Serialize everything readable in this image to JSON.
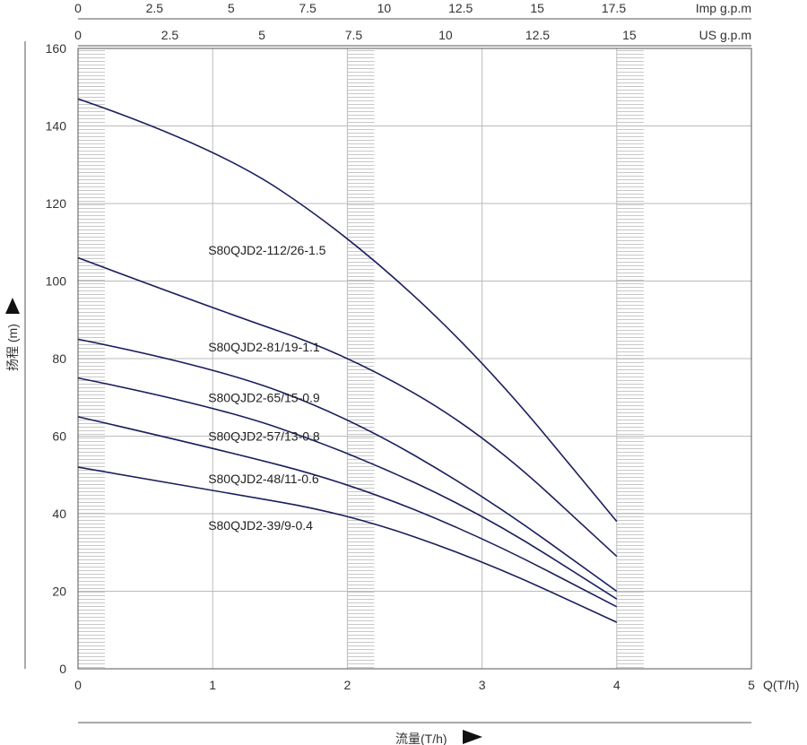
{
  "chart_data": {
    "type": "line",
    "title": "",
    "xlabel": "流量(T/h)",
    "x_axis_end_label": "Q(T/h)",
    "ylabel": "扬程 (m)",
    "xlim": [
      0,
      5
    ],
    "ylim": [
      0,
      160
    ],
    "x_ticks": [
      "0",
      "1",
      "2",
      "3",
      "4",
      "5"
    ],
    "y_ticks": [
      "0",
      "20",
      "40",
      "60",
      "80",
      "100",
      "120",
      "140",
      "160"
    ],
    "grid": true,
    "hatched_bands_x": [
      [
        0,
        0.2
      ],
      [
        2,
        2.2
      ],
      [
        4,
        4.2
      ]
    ],
    "top_axes": [
      {
        "label": "Imp g.p.m",
        "ticks": [
          "0",
          "2.5",
          "5",
          "7.5",
          "10",
          "12.5",
          "15",
          "17.5"
        ],
        "tick_values_q": [
          0,
          0.568,
          1.137,
          1.705,
          2.273,
          2.841,
          3.41,
          3.978
        ]
      },
      {
        "label": "US g.p.m",
        "ticks": [
          "0",
          "2.5",
          "5",
          "7.5",
          "10",
          "12.5",
          "15"
        ],
        "tick_values_q": [
          0,
          0.682,
          1.365,
          2.047,
          2.729,
          3.412,
          4.094
        ]
      }
    ],
    "series": [
      {
        "name": "S80QJD2-112/26-1.5",
        "x": [
          0,
          1,
          2,
          3,
          4
        ],
        "y": [
          147,
          135,
          112,
          80,
          38
        ],
        "label_at": [
          1,
          108
        ]
      },
      {
        "name": "S80QJD2-81/19-1.1",
        "x": [
          0,
          1,
          2,
          3,
          4
        ],
        "y": [
          106,
          93,
          81,
          61,
          29
        ],
        "label_at": [
          1,
          83
        ]
      },
      {
        "name": "S80QJD2-65/15-0.9",
        "x": [
          0,
          1,
          2,
          3,
          4
        ],
        "y": [
          85,
          78,
          65,
          45,
          20
        ],
        "label_at": [
          1,
          70
        ]
      },
      {
        "name": "S80QJD2-57/13-0.8",
        "x": [
          0,
          1,
          2,
          3,
          4
        ],
        "y": [
          75,
          68,
          56,
          40,
          18
        ],
        "label_at": [
          1,
          60
        ]
      },
      {
        "name": "S80QJD2-48/11-0.6",
        "x": [
          0,
          1,
          2,
          3,
          4
        ],
        "y": [
          65,
          57,
          48,
          34,
          16
        ],
        "label_at": [
          1,
          49
        ]
      },
      {
        "name": "S80QJD2-39/9-0.4",
        "x": [
          0,
          1,
          2,
          3,
          4
        ],
        "y": [
          52,
          46,
          40,
          28,
          12
        ],
        "label_at": [
          1,
          37
        ]
      }
    ],
    "line_color": "#1a1f5e",
    "grid_color": "#bbbbbb",
    "hatch_color": "#c8c8c8"
  }
}
